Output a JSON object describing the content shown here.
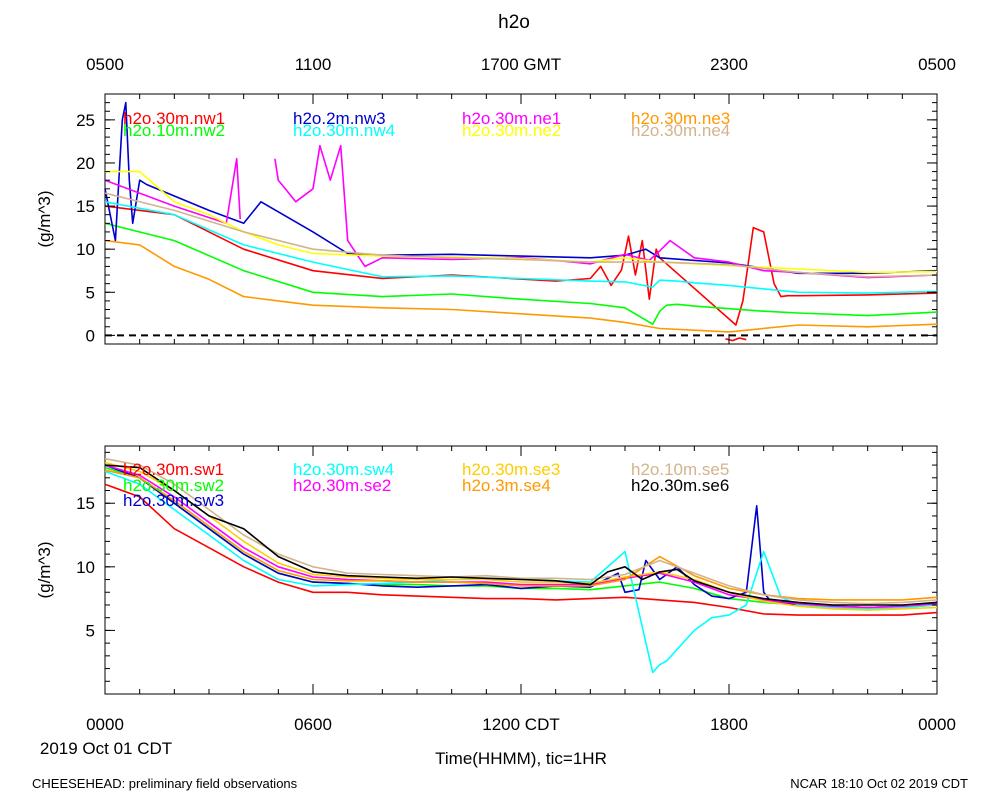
{
  "title": "h2o",
  "top_ticks": [
    "0500",
    "1100",
    "1700 GMT",
    "2300",
    "0500"
  ],
  "bottom_ticks": [
    "0000",
    "0600",
    "1200 CDT",
    "1800",
    "0000"
  ],
  "date_label": "2019 Oct 01 CDT",
  "xlabel": "Time(HHMM), tic=1HR",
  "footer_left": "CHEESEHEAD: preliminary field observations",
  "footer_right": "NCAR 18:10 Oct 02 2019 CDT",
  "chart_data": [
    {
      "type": "line",
      "title": "h2o",
      "ylabel": "(g/m^3)",
      "xlim": [
        0,
        24
      ],
      "ylim": [
        -1,
        28
      ],
      "yticks": [
        "0",
        "5",
        "10",
        "15",
        "20",
        "25"
      ],
      "ytick_values": [
        0,
        5,
        10,
        15,
        20,
        25
      ],
      "reference_line": 0,
      "series": [
        {
          "name": "h2o.30m.nw1",
          "color": "#ff0000",
          "x": [
            0,
            2,
            4,
            6,
            8,
            10,
            13,
            14,
            14.3,
            14.6,
            14.9,
            15.1,
            15.3,
            15.5,
            15.7,
            15.9,
            16,
            18.2,
            18.4,
            18.7,
            19,
            19.3,
            19.5,
            19.7,
            20,
            22,
            24
          ],
          "y": [
            15,
            14,
            10,
            7.5,
            6.6,
            7,
            6.3,
            6.6,
            8,
            5.8,
            7.6,
            11.5,
            7,
            11,
            4.2,
            10,
            9,
            1.2,
            4,
            12.5,
            12,
            6,
            4.5,
            4.6,
            4.6,
            4.7,
            4.9
          ]
        },
        {
          "name": "h2o.10m.nw2",
          "color": "#00ff00",
          "x": [
            0,
            2,
            4,
            6,
            8,
            10,
            12,
            14,
            15,
            15.8,
            16,
            16.2,
            16.5,
            17,
            19,
            20,
            22,
            24
          ],
          "y": [
            13,
            11,
            7.5,
            5,
            4.5,
            4.8,
            4.2,
            3.7,
            3.2,
            1.3,
            2.8,
            3.5,
            3.6,
            3.4,
            2.8,
            2.6,
            2.3,
            2.7
          ]
        },
        {
          "name": "h2o.2m.nw3",
          "color": "#0000cc",
          "x": [
            0,
            0.3,
            0.5,
            0.6,
            0.7,
            0.8,
            1,
            1.2,
            3,
            4,
            4.5,
            6,
            7,
            8,
            10,
            12,
            14,
            15,
            15.6,
            16,
            18,
            20,
            22,
            24
          ],
          "y": [
            17,
            11,
            25,
            27,
            18,
            13,
            18,
            17.5,
            14.5,
            13,
            15.5,
            12,
            9.5,
            9.3,
            9.4,
            9.2,
            9,
            9.3,
            10,
            9,
            8.4,
            7.2,
            7.2,
            7.5
          ]
        },
        {
          "name": "h2o.30m.nw4",
          "color": "#00ffff",
          "x": [
            0,
            2,
            4,
            6,
            8,
            10,
            12,
            14,
            15,
            15.8,
            16,
            16.5,
            17,
            18,
            20,
            22,
            24
          ],
          "y": [
            15.5,
            14,
            10.5,
            8.5,
            6.8,
            6.9,
            6.6,
            6.3,
            6.2,
            5.6,
            6.4,
            6.3,
            6.1,
            5.8,
            5,
            4.9,
            5.1
          ]
        },
        {
          "name": "h2o.30m.ne1",
          "color": "#ff00ff",
          "x": [
            0,
            2,
            3.5,
            3.8,
            3.9,
            4,
            4.4,
            4.9,
            5,
            5.2,
            5.5,
            6,
            6.2,
            6.5,
            6.8,
            7,
            7.5,
            8,
            10,
            12,
            13,
            14,
            15,
            15.7,
            16,
            16.3,
            17,
            18,
            19,
            20,
            22,
            24
          ],
          "y": [
            18,
            15,
            13,
            20.5,
            13.5,
            null,
            null,
            20.5,
            18,
            17,
            15.5,
            17,
            22,
            18,
            22,
            11,
            8,
            9,
            8.8,
            9,
            8.7,
            8.3,
            9.4,
            8.7,
            9.8,
            11,
            9,
            8.5,
            7.5,
            7.3,
            6.7,
            7
          ]
        },
        {
          "name": "h2o.30m.ne2",
          "color": "#ffff00",
          "x": [
            0,
            1,
            2,
            3,
            4,
            5,
            6,
            8,
            10,
            12,
            14,
            15,
            16,
            18,
            20,
            22,
            24
          ],
          "y": [
            19,
            19,
            15.5,
            14,
            12,
            10.5,
            9.5,
            9.2,
            9.1,
            8.9,
            8.5,
            9,
            8.5,
            8.1,
            7.7,
            7.3,
            7.4
          ]
        },
        {
          "name": "h2o.30m.ne3",
          "color": "#ff9900",
          "x": [
            0,
            1,
            2,
            3,
            4,
            5,
            6,
            8,
            10,
            12,
            14,
            15,
            16,
            17,
            18,
            20,
            22,
            24
          ],
          "y": [
            11,
            10.5,
            8,
            6.5,
            4.5,
            4,
            3.5,
            3.2,
            3,
            2.5,
            2,
            1.5,
            0.8,
            0.6,
            0.4,
            1.2,
            1,
            1.3
          ]
        },
        {
          "name": "h2o.30m.ne4",
          "color": "#d2b48c",
          "x": [
            0,
            2,
            4,
            6,
            8,
            10,
            12,
            14,
            16,
            18,
            20,
            22,
            24
          ],
          "y": [
            16.5,
            14.5,
            12,
            10,
            9.3,
            9,
            8.8,
            8.5,
            8.5,
            8.2,
            7.3,
            6.8,
            7
          ]
        },
        {
          "name": "h2o.30m.nw1 (neg)",
          "color": "#ff0000",
          "x": [
            17.9,
            18.1,
            18.3,
            18.5
          ],
          "y": [
            -0.4,
            -0.6,
            -0.3,
            -0.5
          ]
        }
      ]
    },
    {
      "type": "line",
      "ylabel": "(g/m^3)",
      "xlim": [
        0,
        24
      ],
      "ylim": [
        0,
        19.5
      ],
      "yticks": [
        "5",
        "10",
        "15"
      ],
      "ytick_values": [
        5,
        10,
        15
      ],
      "series": [
        {
          "name": "h2o.30m.sw1",
          "color": "#ff0000",
          "x": [
            0,
            1,
            2,
            3,
            4,
            5,
            6,
            7,
            8,
            9,
            10,
            11,
            12,
            13,
            14,
            15,
            16,
            17,
            18,
            19,
            20,
            21,
            22,
            23,
            24
          ],
          "y": [
            16.5,
            15.5,
            13,
            11.5,
            10,
            8.8,
            8,
            8,
            7.8,
            7.7,
            7.6,
            7.5,
            7.5,
            7.4,
            7.5,
            7.6,
            7.4,
            7.2,
            6.8,
            6.3,
            6.2,
            6.2,
            6.2,
            6.2,
            6.4
          ]
        },
        {
          "name": "h2o.30m.sw2",
          "color": "#00ff00",
          "x": [
            0,
            1,
            2,
            3,
            4,
            5,
            6,
            7,
            8,
            9,
            10,
            11,
            12,
            13,
            14,
            15,
            16,
            17,
            18,
            19,
            20,
            21,
            22,
            23,
            24
          ],
          "y": [
            17.8,
            17,
            15,
            13,
            11,
            9.5,
            8.8,
            8.7,
            8.6,
            8.6,
            8.5,
            8.5,
            8.3,
            8.3,
            8.2,
            8.5,
            8.8,
            8.3,
            7.5,
            7.2,
            7,
            6.9,
            6.8,
            6.8,
            7
          ]
        },
        {
          "name": "h2o.30m.sw3",
          "color": "#0000cc",
          "x": [
            0,
            1,
            2,
            3,
            4,
            5,
            6,
            7,
            8,
            9,
            10,
            11,
            12,
            13,
            14,
            14.8,
            15,
            15.4,
            15.6,
            16,
            16.5,
            17,
            17.5,
            18,
            18.5,
            18.8,
            19,
            19.2,
            19.5,
            20,
            21,
            22,
            23,
            24
          ],
          "y": [
            18,
            17,
            15,
            13,
            11,
            9.5,
            8.8,
            8.7,
            8.5,
            8.4,
            8.5,
            8.6,
            8.3,
            8.5,
            8.4,
            9.5,
            8,
            8.2,
            10.5,
            9,
            10,
            8.6,
            7.7,
            7.5,
            8,
            14.8,
            8,
            7.3,
            7.2,
            7,
            6.9,
            6.8,
            6.9,
            7.1
          ]
        },
        {
          "name": "h2o.30m.sw4",
          "color": "#00ffff",
          "x": [
            0,
            1,
            2,
            3,
            4,
            5,
            6,
            7,
            8,
            9,
            10,
            11,
            12,
            13,
            14,
            15,
            15.8,
            16,
            16.2,
            17,
            17.5,
            18,
            18.5,
            19,
            19.5,
            20,
            21,
            22,
            23,
            24
          ],
          "y": [
            17.5,
            16.5,
            14.5,
            12.5,
            10.5,
            9,
            8.5,
            8.6,
            8.7,
            8.8,
            9,
            9.1,
            9,
            8.9,
            8.8,
            11.2,
            1.7,
            2.3,
            2.6,
            5,
            6,
            6.2,
            7,
            11.2,
            7.6,
            7,
            6.8,
            6.7,
            6.8,
            7
          ]
        },
        {
          "name": "h2o.30m.se2",
          "color": "#ff00ff",
          "x": [
            0,
            1,
            2,
            3,
            4,
            5,
            6,
            7,
            8,
            9,
            10,
            11,
            12,
            13,
            14,
            15,
            16,
            17,
            18,
            19,
            20,
            21,
            22,
            23,
            24
          ],
          "y": [
            18,
            17.2,
            15.5,
            13.5,
            11.5,
            10,
            9.2,
            9,
            8.9,
            8.8,
            8.8,
            8.8,
            8.6,
            8.6,
            8.6,
            9.1,
            9.5,
            8.8,
            7.8,
            7.4,
            7.1,
            6.9,
            6.8,
            6.9,
            7.1
          ]
        },
        {
          "name": "h2o.30m.se3",
          "color": "#ffcc00",
          "x": [
            0,
            1,
            2,
            3,
            4,
            5,
            6,
            7,
            8,
            9,
            10,
            11,
            12,
            13,
            14,
            15,
            16,
            17,
            18,
            19,
            20,
            21,
            22,
            23,
            24
          ],
          "y": [
            18.2,
            17.5,
            16,
            14,
            12,
            10.3,
            9.4,
            9.2,
            9.1,
            9,
            9,
            9,
            8.8,
            8.8,
            8.7,
            9.2,
            9.6,
            9,
            8,
            7.3,
            6.9,
            6.7,
            6.6,
            6.7,
            6.8
          ]
        },
        {
          "name": "h2o.3m.se4",
          "color": "#ff9900",
          "x": [
            0,
            1,
            2,
            3,
            4,
            5,
            6,
            7,
            8,
            9,
            10,
            11,
            12,
            13,
            14,
            15,
            16,
            17,
            18,
            19,
            20,
            21,
            22,
            23,
            24
          ],
          "y": [
            17.6,
            17,
            15.2,
            13.2,
            11.2,
            9.7,
            9,
            8.9,
            8.9,
            8.8,
            8.8,
            8.7,
            8.5,
            8.5,
            8.5,
            9,
            10.8,
            9.3,
            8.3,
            7.8,
            7.5,
            7.4,
            7.4,
            7.4,
            7.6
          ]
        },
        {
          "name": "h2o.10m.se5",
          "color": "#d2b48c",
          "x": [
            0,
            1,
            2,
            3,
            4,
            5,
            6,
            7,
            8,
            9,
            10,
            11,
            12,
            13,
            14,
            15,
            16,
            17,
            18,
            19,
            20,
            21,
            22,
            23,
            24
          ],
          "y": [
            18.5,
            18,
            16.5,
            14.5,
            12.5,
            11,
            10,
            9.5,
            9.4,
            9.3,
            9.2,
            9.3,
            9.1,
            9.1,
            9,
            9.4,
            10.5,
            9.5,
            8.5,
            7.8,
            7.4,
            7.2,
            7.1,
            7.2,
            7.4
          ]
        },
        {
          "name": "h2o.30m.se6",
          "color": "#000000",
          "x": [
            0,
            1,
            2,
            3,
            4,
            5,
            6,
            7,
            8,
            9,
            10,
            11,
            12,
            13,
            14,
            14.5,
            15,
            15.5,
            16,
            16.5,
            17,
            18,
            19,
            20,
            21,
            22,
            23,
            24
          ],
          "y": [
            18,
            17.8,
            16,
            14,
            13,
            10.8,
            9.6,
            9.3,
            9.2,
            9.1,
            9.2,
            9.1,
            9,
            8.9,
            8.6,
            9.6,
            10,
            9,
            9.6,
            9.8,
            8.9,
            8,
            7.5,
            7.2,
            7,
            7,
            7,
            7.2
          ]
        }
      ]
    }
  ],
  "legend_top": [
    {
      "label": "h2o.30m.nw1",
      "color": "#ff0000"
    },
    {
      "label": "h2o.10m.nw2",
      "color": "#00ff00"
    },
    {
      "label": "h2o.2m.nw3",
      "color": "#0000cc"
    },
    {
      "label": "h2o.30m.nw4",
      "color": "#00ffff"
    },
    {
      "label": "h2o.30m.ne1",
      "color": "#ff00ff"
    },
    {
      "label": "h2o.30m.ne2",
      "color": "#ffff00"
    },
    {
      "label": "h2o.30m.ne3",
      "color": "#ff9900"
    },
    {
      "label": "h2o.30m.ne4",
      "color": "#d2b48c"
    }
  ],
  "legend_bottom": [
    {
      "label": "h2o.30m.sw1",
      "color": "#ff0000"
    },
    {
      "label": "h2o.30m.sw2",
      "color": "#00ff00"
    },
    {
      "label": "h2o.30m.sw3",
      "color": "#0000cc"
    },
    {
      "label": "h2o.30m.sw4",
      "color": "#00ffff"
    },
    {
      "label": "h2o.30m.se2",
      "color": "#ff00ff"
    },
    {
      "label": "h2o.30m.se3",
      "color": "#ffcc00"
    },
    {
      "label": "h2o.3m.se4",
      "color": "#ff9900"
    },
    {
      "label": "h2o.10m.se5",
      "color": "#d2b48c"
    },
    {
      "label": "h2o.30m.se6",
      "color": "#000000"
    }
  ]
}
